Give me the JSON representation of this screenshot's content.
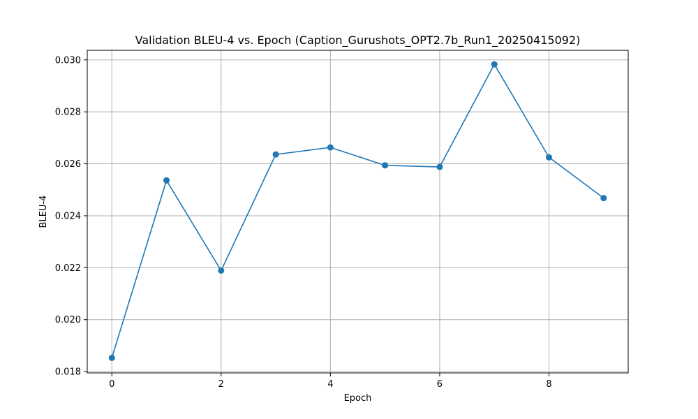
{
  "chart_data": {
    "type": "line",
    "title": "Validation BLEU-4 vs. Epoch (Caption_Gurushots_OPT2.7b_Run1_20250415092)",
    "xlabel": "Epoch",
    "ylabel": "BLEU-4",
    "x": [
      0,
      1,
      2,
      3,
      4,
      5,
      6,
      7,
      8,
      9
    ],
    "series": [
      {
        "values": [
          0.01853,
          0.02536,
          0.02189,
          0.02636,
          0.02663,
          0.02594,
          0.02588,
          0.02983,
          0.02625,
          0.02468
        ]
      }
    ],
    "xlim": [
      -0.45,
      9.45
    ],
    "ylim": [
      0.01795,
      0.03037
    ],
    "x_ticks": [
      0,
      2,
      4,
      6,
      8
    ],
    "x_tick_labels": [
      "0",
      "2",
      "4",
      "6",
      "8"
    ],
    "y_ticks": [
      0.018,
      0.02,
      0.022,
      0.024,
      0.026,
      0.028,
      0.03
    ],
    "y_tick_labels": [
      "0.018",
      "0.020",
      "0.022",
      "0.024",
      "0.026",
      "0.028",
      "0.030"
    ],
    "grid": true,
    "marker": "circle",
    "line_color": "#1f77b4"
  }
}
